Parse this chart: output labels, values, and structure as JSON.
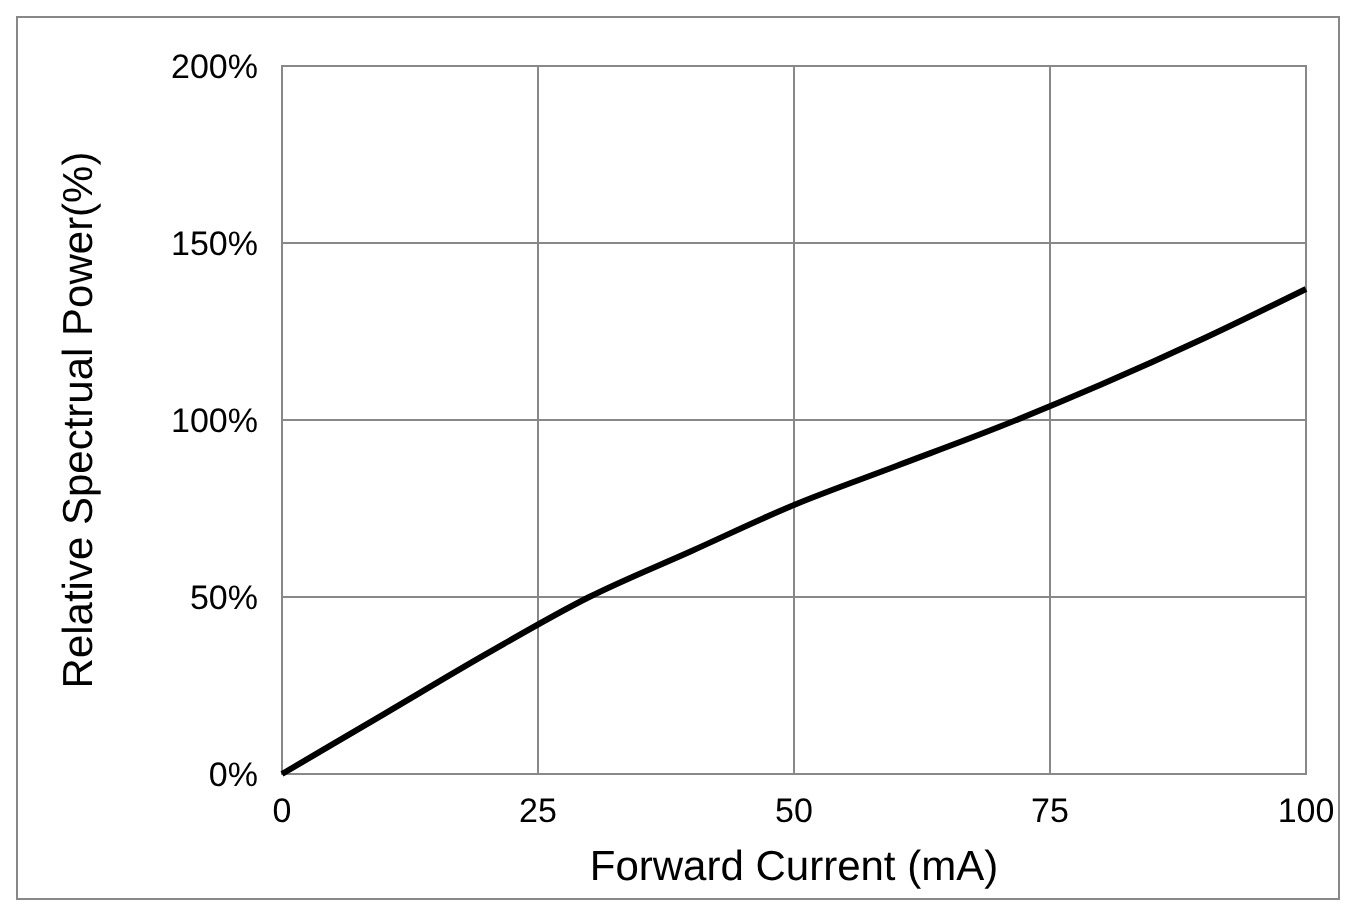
{
  "chart_data": {
    "type": "line",
    "xlabel": "Forward Current (mA)",
    "ylabel": "Relative Spectrual Power(%)",
    "x": [
      0,
      10,
      20,
      30,
      40,
      50,
      60,
      70,
      80,
      90,
      100
    ],
    "series": [
      {
        "color": "#000000",
        "values": [
          0,
          17,
          34,
          50,
          63,
          76,
          87,
          98,
          110,
          123,
          137
        ]
      }
    ],
    "xlim": [
      0,
      100
    ],
    "xticks": [
      0,
      25,
      50,
      75,
      100
    ],
    "ylim": [
      0,
      200
    ],
    "yticks": [
      {
        "value": 0,
        "label": "0%"
      },
      {
        "value": 50,
        "label": "50%"
      },
      {
        "value": 100,
        "label": "100%"
      },
      {
        "value": 150,
        "label": "150%"
      },
      {
        "value": 200,
        "label": "200%"
      }
    ],
    "grid": true,
    "marker": "none",
    "line_style": "solid"
  }
}
